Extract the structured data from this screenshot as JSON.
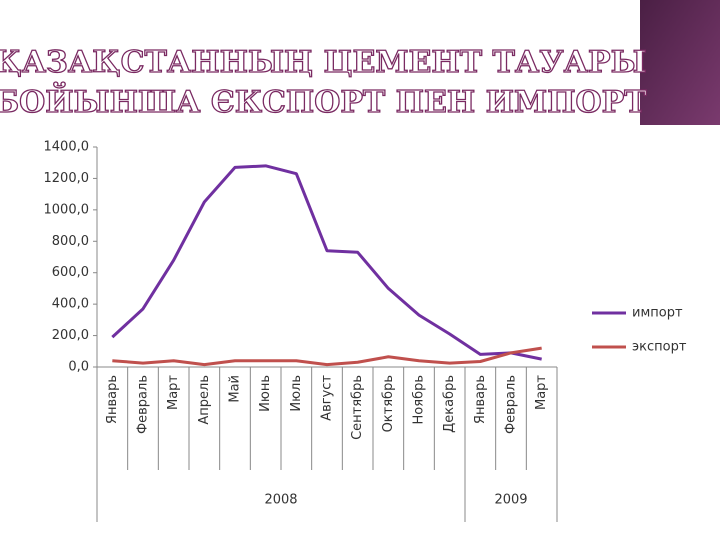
{
  "chart_data": {
    "type": "line",
    "title": [
      "ҚАЗАҚСТАННЫҢ ЦЕМЕНТ ТАУАРЫ",
      "БОЙЫНША ЄКСПОРТ ПЕН ИМПОРТ"
    ],
    "categories": [
      "Январь",
      "Февраль",
      "Март",
      "Апрель",
      "Май",
      "Июнь",
      "Июль",
      "Август",
      "Сентябрь",
      "Октябрь",
      "Ноябрь",
      "Декабрь",
      "Январь",
      "Февраль",
      "Март"
    ],
    "category_groups": [
      {
        "name": "2008",
        "count": 12
      },
      {
        "name": "2009",
        "count": 3
      }
    ],
    "series": [
      {
        "name": "импорт",
        "color": "#7030a0",
        "values": [
          190,
          370,
          680,
          1050,
          1270,
          1280,
          1230,
          740,
          730,
          500,
          330,
          210,
          80,
          90,
          50
        ]
      },
      {
        "name": "экспорт",
        "color": "#c0504d",
        "values": [
          40,
          25,
          40,
          15,
          40,
          40,
          40,
          15,
          30,
          65,
          40,
          25,
          35,
          90,
          120
        ]
      }
    ],
    "ylim": [
      0,
      1400
    ],
    "yticks": [
      {
        "value": 0,
        "label": "0,0"
      },
      {
        "value": 200,
        "label": "200,0"
      },
      {
        "value": 400,
        "label": "400,0"
      },
      {
        "value": 600,
        "label": "600,0"
      },
      {
        "value": 800,
        "label": "800,0"
      },
      {
        "value": 1000,
        "label": "1000,0"
      },
      {
        "value": 1200,
        "label": "1200,0"
      },
      {
        "value": 1400,
        "label": "1400,0"
      }
    ],
    "grid": false,
    "legend": "right"
  }
}
